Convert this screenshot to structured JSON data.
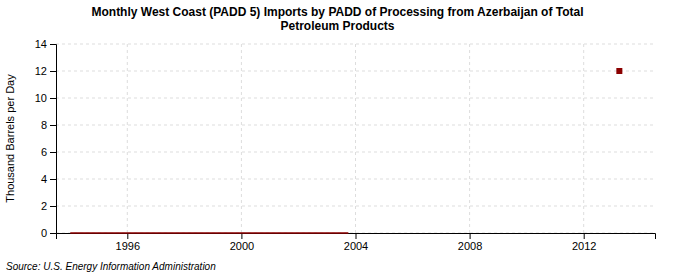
{
  "chart_data": {
    "type": "line",
    "title": "Monthly West Coast (PADD 5) Imports by PADD of Processing from Azerbaijan of Total\nPetroleum Products",
    "ylabel": "Thousand Barrels per Day",
    "source": "Source: U.S. Energy Information Administration",
    "series": [
      {
        "type": "line",
        "color": "#8b0000",
        "x": [
          1994.0,
          2003.75
        ],
        "values": [
          0.0,
          0.0
        ]
      },
      {
        "type": "scatter",
        "marker": "square",
        "color": "#8b0000",
        "x": [
          2013.25
        ],
        "values": [
          12.0
        ]
      }
    ],
    "xlim": [
      1993.5,
      2014.5
    ],
    "xticks": [
      1996,
      2000,
      2004,
      2008,
      2012
    ],
    "ylim": [
      0,
      14
    ],
    "yticks": [
      0,
      2,
      4,
      6,
      8,
      10,
      12,
      14
    ],
    "grid": true
  }
}
